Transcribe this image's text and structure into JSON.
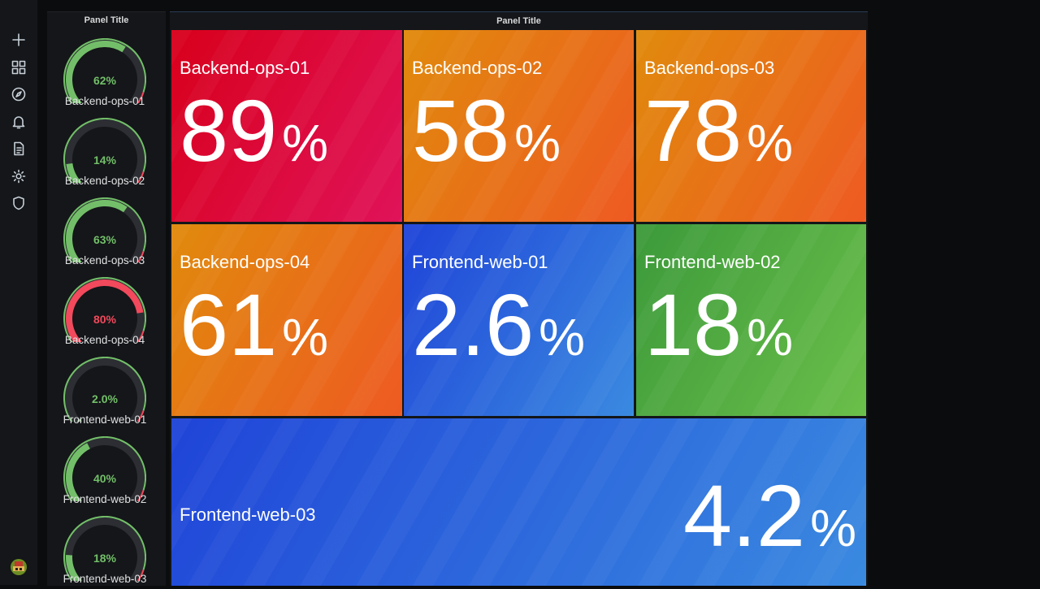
{
  "nav": {
    "icons": [
      "plus-icon",
      "dashboards-icon",
      "explore-icon",
      "alerting-icon",
      "reports-icon",
      "configuration-icon",
      "shield-icon"
    ]
  },
  "gauge_panel": {
    "title": "Panel Title",
    "gauges": [
      {
        "name": "Backend-ops-01",
        "value": "62%",
        "fraction": 0.62,
        "color": "#73bf69"
      },
      {
        "name": "Backend-ops-02",
        "value": "14%",
        "fraction": 0.14,
        "color": "#73bf69"
      },
      {
        "name": "Backend-ops-03",
        "value": "63%",
        "fraction": 0.63,
        "color": "#73bf69"
      },
      {
        "name": "Backend-ops-04",
        "value": "80%",
        "fraction": 0.8,
        "color": "#f2495c"
      },
      {
        "name": "Frontend-web-01",
        "value": "2.0%",
        "fraction": 0.02,
        "color": "#73bf69"
      },
      {
        "name": "Frontend-web-02",
        "value": "40%",
        "fraction": 0.4,
        "color": "#73bf69"
      },
      {
        "name": "Frontend-web-03",
        "value": "18%",
        "fraction": 0.18,
        "color": "#73bf69"
      }
    ]
  },
  "stat_panel": {
    "title": "Panel Title",
    "tiles": [
      {
        "name": "Backend-ops-01",
        "value": "89",
        "unit": "%",
        "color_from": "#d8001b",
        "color_to": "#e0135a"
      },
      {
        "name": "Backend-ops-02",
        "value": "58",
        "unit": "%",
        "color_from": "#e08a0c",
        "color_to": "#ee5a22"
      },
      {
        "name": "Backend-ops-03",
        "value": "78",
        "unit": "%",
        "color_from": "#e08a0c",
        "color_to": "#ee5a22"
      },
      {
        "name": "Backend-ops-04",
        "value": "61",
        "unit": "%",
        "color_from": "#e08a0c",
        "color_to": "#ee5a22"
      },
      {
        "name": "Frontend-web-01",
        "value": "2.6",
        "unit": "%",
        "color_from": "#1f44d8",
        "color_to": "#3a8ae0"
      },
      {
        "name": "Frontend-web-02",
        "value": "18",
        "unit": "%",
        "color_from": "#3c9a3a",
        "color_to": "#6bbf4a"
      },
      {
        "name": "Frontend-web-03",
        "value": "4.2",
        "unit": "%",
        "color_from": "#1f44d8",
        "color_to": "#3a8ae0"
      }
    ]
  }
}
